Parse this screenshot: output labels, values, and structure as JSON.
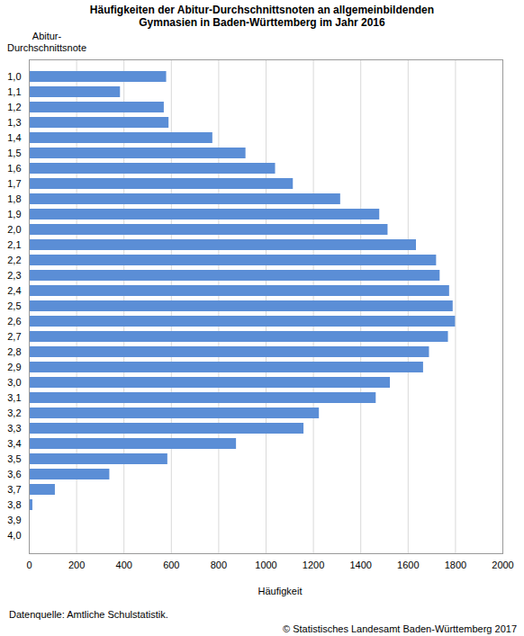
{
  "chart_data": {
    "type": "bar",
    "orientation": "horizontal",
    "title": "Häufigkeiten der Abitur-Durchschnittsnoten an allgemeinbildenden Gymnasien in Baden-Württemberg im Jahr 2016",
    "y_label": "Abitur-Durchschnittsnote",
    "x_label": "Häufigkeit",
    "source": "Datenquelle: Amtliche Schulstatistik.",
    "copyright": "© Statistisches Landesamt Baden-Württemberg 2017",
    "categories": [
      "1,0",
      "1,1",
      "1,2",
      "1,3",
      "1,4",
      "1,5",
      "1,6",
      "1,7",
      "1,8",
      "1,9",
      "2,0",
      "2,1",
      "2,2",
      "2,3",
      "2,4",
      "2,5",
      "2,6",
      "2,7",
      "2,8",
      "2,9",
      "3,0",
      "3,1",
      "3,2",
      "3,3",
      "3,4",
      "3,5",
      "3,6",
      "3,7",
      "3,8",
      "3,9",
      "4,0"
    ],
    "values": [
      580,
      385,
      570,
      590,
      775,
      915,
      1040,
      1115,
      1315,
      1480,
      1515,
      1635,
      1720,
      1735,
      1775,
      1790,
      1800,
      1770,
      1690,
      1665,
      1525,
      1465,
      1225,
      1160,
      875,
      585,
      340,
      110,
      15,
      0,
      0
    ],
    "color": "#5b8ed6",
    "xlim": [
      0,
      2000
    ],
    "xticks": [
      0,
      200,
      400,
      600,
      800,
      1000,
      1200,
      1400,
      1600,
      1800,
      2000
    ],
    "grid": true
  }
}
